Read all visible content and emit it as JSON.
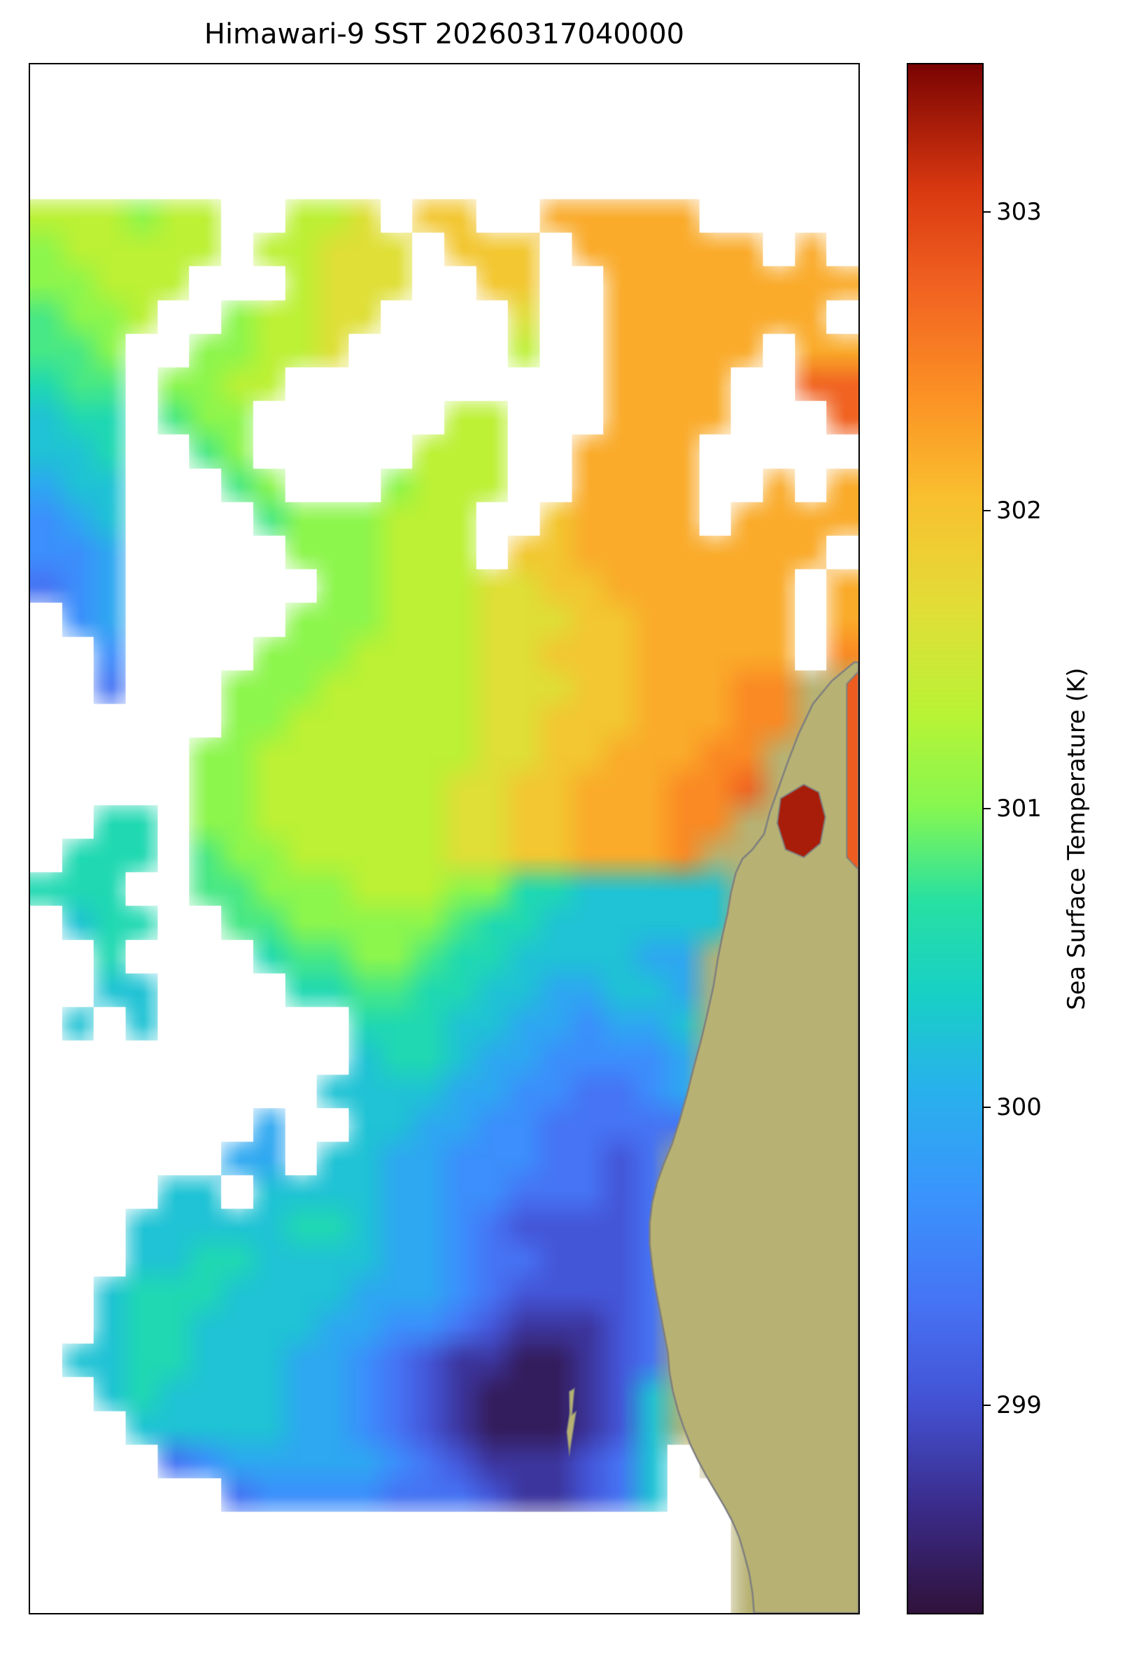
{
  "chart_data": {
    "type": "heatmap",
    "title": "Himawari-9 SST 20260317040000",
    "colorbar": {
      "label": "Sea Surface Temperature (K)",
      "ticks": [
        299,
        300,
        301,
        302,
        303
      ],
      "vmin": 298.3,
      "vmax": 303.5,
      "orientation": "vertical",
      "position": "right"
    },
    "colormap": {
      "name": "turbo",
      "stops": [
        [
          0.0,
          "#30123b"
        ],
        [
          0.07,
          "#3a2c8c"
        ],
        [
          0.14,
          "#4454d6"
        ],
        [
          0.2,
          "#4673f4"
        ],
        [
          0.27,
          "#3a94fd"
        ],
        [
          0.34,
          "#28b2eb"
        ],
        [
          0.4,
          "#18d0c5"
        ],
        [
          0.46,
          "#27e0a2"
        ],
        [
          0.52,
          "#86f751"
        ],
        [
          0.58,
          "#b8f335"
        ],
        [
          0.65,
          "#e2dd37"
        ],
        [
          0.72,
          "#f9c02f"
        ],
        [
          0.79,
          "#fb8f24"
        ],
        [
          0.86,
          "#f06021"
        ],
        [
          0.92,
          "#d93810"
        ],
        [
          1.0,
          "#7a0403"
        ]
      ]
    },
    "grid": {
      "note": "Coarse estimate of the SST field in Kelvin read from the image. '.' = cloud / no data (white), 'L' = land.",
      "cols": 26,
      "rows": 46,
      "cell_values_K": {
        ".": null,
        "L": "land",
        "a": 298.45,
        "b": 298.75,
        "c": 299.05,
        "d": 299.35,
        "e": 299.65,
        "f": 299.95,
        "g": 300.25,
        "h": 300.55,
        "i": 300.8,
        "j": 301.05,
        "k": 301.35,
        "l": 301.65,
        "m": 301.95,
        "n": 302.2,
        "o": 302.45,
        "p": 302.75
      },
      "rows_encoded": [
        "..........................",
        "..........................",
        "..........................",
        "..........................",
        "kkkjkk..kkl.mm..nnnnn.....",
        "jkkkkk.kklll.mmm.nnnnnn.n.",
        "jjkkk...klll..mm..nnnnnnnn",
        "ijjk..jkkll....l..nnnnnnn.",
        "iij..jjkkl.....k..nnnnn.nn",
        "hii.jjkk..........nnnn..pp",
        "ghh.ijj......kk...nnnn...p",
        "ggh..ij.....kkk..nnnn.....",
        "fgg...ij...jkkk..nnnn..n.n",
        "efg....ijjjkkk..mnnnn.nnnn",
        "eef.....jjjkkk.mmnnnnnnnn.",
        "def......jjkkkllmmnnnnnn.n",
        ".ef.....jjjkkklllmmnnnnn.n",
        "..e....jjjkkkkllmmmnnnnn.o",
        "..d...jjjkkkkklllmmnnnooLL",
        "......jjkkkkkkllmmmnnnooLL",
        ".....jjkkkkkkkllmmnnnooLLL",
        ".....jjkkkkkkllmmnnnoopLLL",
        "..hh.jjkkkkkkllmmnnnooLLLL",
        ".hhh.ijjkkkkkllmmnnnoLLLLL",
        "hhh..iijjjkkkjjhhgggggLLLL",
        ".ghh..iijjjjjihhggggggLLLL",
        "..h....hiijjihhggggffLLLLL",
        "..gg....hhiihhggffggfLLLLL",
        ".g.g......hhhggffeffgLLLLL",
        "..........ghhgffeeeefLLLLL",
        ".........ggggffeeddefLLLLL",
        ".......f..ggffeedddddLLLLL",
        "......ff.ggffeeeddcdLLLLLL",
        "....gg.ggggffeedddcdLLLLLL",
        "...ggggghhgffedccccdLLLLLL",
        "...gghhggggffeddcccdLLLLLL",
        "..ghhhggggfffedccccdLLLLLL",
        "..ghhggggffeedcbbbcdLLLLLL",
        ".gghhgggffedcbbaabcdLLLLLL",
        "..ghggggffedcbaaabcgLLLLLL",
        "...gggggffedcbaaabcgLLLLLL",
        "....defffffedcbbbcdg.LLLLL",
        "......deeeedddcbbcdg..LLLL",
        "......................LLLL",
        "......................LLLL",
        "......................LLLL"
      ]
    },
    "land": {
      "fill": "#b7b273",
      "coast": "#7f7f7f",
      "polygon": [
        [
          0.995,
          0.386
        ],
        [
          0.968,
          0.398
        ],
        [
          0.945,
          0.413
        ],
        [
          0.928,
          0.432
        ],
        [
          0.915,
          0.45
        ],
        [
          0.903,
          0.468
        ],
        [
          0.893,
          0.483
        ],
        [
          0.886,
          0.497
        ],
        [
          0.872,
          0.507
        ],
        [
          0.86,
          0.513
        ],
        [
          0.852,
          0.522
        ],
        [
          0.846,
          0.535
        ],
        [
          0.842,
          0.548
        ],
        [
          0.836,
          0.562
        ],
        [
          0.83,
          0.578
        ],
        [
          0.825,
          0.595
        ],
        [
          0.818,
          0.612
        ],
        [
          0.81,
          0.63
        ],
        [
          0.801,
          0.648
        ],
        [
          0.793,
          0.665
        ],
        [
          0.784,
          0.682
        ],
        [
          0.775,
          0.697
        ],
        [
          0.765,
          0.71
        ],
        [
          0.757,
          0.722
        ],
        [
          0.751,
          0.735
        ],
        [
          0.748,
          0.748
        ],
        [
          0.748,
          0.762
        ],
        [
          0.751,
          0.776
        ],
        [
          0.755,
          0.79
        ],
        [
          0.76,
          0.804
        ],
        [
          0.765,
          0.818
        ],
        [
          0.77,
          0.832
        ],
        [
          0.772,
          0.845
        ],
        [
          0.776,
          0.857
        ],
        [
          0.782,
          0.869
        ],
        [
          0.789,
          0.88
        ],
        [
          0.797,
          0.891
        ],
        [
          0.806,
          0.901
        ],
        [
          0.816,
          0.911
        ],
        [
          0.827,
          0.921
        ],
        [
          0.838,
          0.931
        ],
        [
          0.848,
          0.941
        ],
        [
          0.856,
          0.951
        ],
        [
          0.862,
          0.962
        ],
        [
          0.868,
          0.974
        ],
        [
          0.872,
          0.987
        ],
        [
          0.874,
          1.0
        ],
        [
          1.0,
          1.0
        ],
        [
          1.0,
          0.386
        ]
      ],
      "islands": [
        {
          "polygon": [
            [
              0.651,
              0.857
            ],
            [
              0.657,
              0.855
            ],
            [
              0.654,
              0.872
            ],
            [
              0.659,
              0.87
            ],
            [
              0.651,
              0.897
            ],
            [
              0.648,
              0.883
            ],
            [
              0.6515,
              0.871
            ]
          ]
        }
      ]
    },
    "hot_patches": [
      {
        "name": "warm-strip-right-edge",
        "polygon": [
          [
            0.986,
            0.4
          ],
          [
            1.0,
            0.392
          ],
          [
            1.0,
            0.52
          ],
          [
            0.986,
            0.512
          ]
        ],
        "value_K": 302.8,
        "outlined": true
      },
      {
        "name": "bay-hotspot",
        "polygon": [
          [
            0.906,
            0.474
          ],
          [
            0.934,
            0.465
          ],
          [
            0.952,
            0.47
          ],
          [
            0.96,
            0.486
          ],
          [
            0.954,
            0.503
          ],
          [
            0.934,
            0.512
          ],
          [
            0.912,
            0.507
          ],
          [
            0.902,
            0.49
          ]
        ],
        "value_K": 303.3,
        "outlined": true
      }
    ]
  }
}
